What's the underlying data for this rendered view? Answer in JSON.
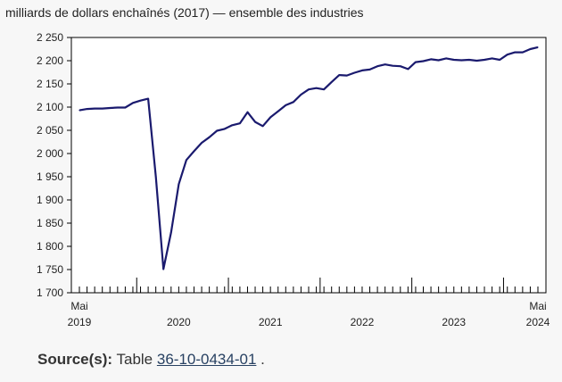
{
  "chart_data": {
    "type": "line",
    "unit_label": "milliards de dollars enchaînés (2017) — ensemble des industries",
    "ylim": [
      1700,
      2250
    ],
    "y_ticks": [
      1700,
      1750,
      1800,
      1850,
      1900,
      1950,
      2000,
      2050,
      2100,
      2150,
      2200,
      2250
    ],
    "y_tick_labels": [
      "1 700",
      "1 750",
      "1 800",
      "1 850",
      "1 900",
      "1 950",
      "2 000",
      "2 050",
      "2 100",
      "2 150",
      "2 200",
      "2 250"
    ],
    "x_start": "2019-05",
    "x_end": "2024-05",
    "x_year_labels": [
      {
        "month": "2019-05",
        "label": "2019",
        "sub": "Mai"
      },
      {
        "month": "2020-06",
        "label": "2020"
      },
      {
        "month": "2021-06",
        "label": "2021"
      },
      {
        "month": "2022-06",
        "label": "2022"
      },
      {
        "month": "2023-06",
        "label": "2023"
      },
      {
        "month": "2024-05",
        "label": "2024",
        "sub": "Mai"
      }
    ],
    "year_boundaries": [
      "2019-12",
      "2020-12",
      "2021-12",
      "2022-12",
      "2023-12"
    ],
    "line_color": "#1a1a6e",
    "series": [
      {
        "x": [
          "2019-05",
          "2019-06",
          "2019-07",
          "2019-08",
          "2019-09",
          "2019-10",
          "2019-11",
          "2019-12",
          "2020-01",
          "2020-02",
          "2020-03",
          "2020-04",
          "2020-05",
          "2020-06",
          "2020-07",
          "2020-08",
          "2020-09",
          "2020-10",
          "2020-11",
          "2020-12",
          "2021-01",
          "2021-02",
          "2021-03",
          "2021-04",
          "2021-05",
          "2021-06",
          "2021-07",
          "2021-08",
          "2021-09",
          "2021-10",
          "2021-11",
          "2021-12",
          "2022-01",
          "2022-02",
          "2022-03",
          "2022-04",
          "2022-05",
          "2022-06",
          "2022-07",
          "2022-08",
          "2022-09",
          "2022-10",
          "2022-11",
          "2022-12",
          "2023-01",
          "2023-02",
          "2023-03",
          "2023-04",
          "2023-05",
          "2023-06",
          "2023-07",
          "2023-08",
          "2023-09",
          "2023-10",
          "2023-11",
          "2023-12",
          "2024-01",
          "2024-02",
          "2024-03",
          "2024-04",
          "2024-05"
        ],
        "values": [
          2093,
          2096,
          2097,
          2097,
          2098,
          2099,
          2099,
          2109,
          2114,
          2118,
          1950,
          1751,
          1830,
          1934,
          1986,
          2005,
          2023,
          2035,
          2049,
          2053,
          2061,
          2065,
          2089,
          2068,
          2059,
          2078,
          2091,
          2104,
          2111,
          2127,
          2138,
          2141,
          2138,
          2154,
          2169,
          2168,
          2174,
          2179,
          2181,
          2188,
          2192,
          2189,
          2188,
          2182,
          2197,
          2199,
          2203,
          2201,
          2205,
          2202,
          2201,
          2202,
          2200,
          2202,
          2205,
          2202,
          2213,
          2218,
          2218,
          2225,
          2229
        ]
      }
    ]
  },
  "source": {
    "label": "Source(s):",
    "prefix": "Table",
    "link_text": "36-10-0434-01",
    "suffix": "."
  }
}
